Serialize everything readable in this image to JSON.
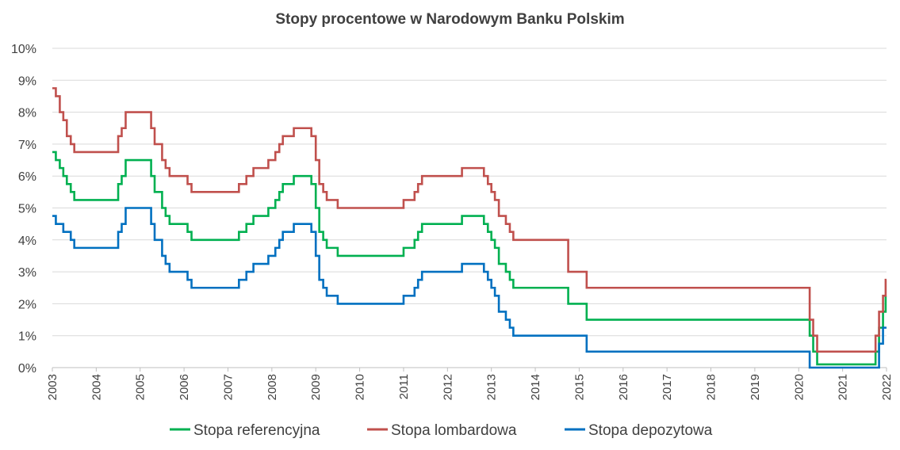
{
  "chart_data": {
    "type": "line",
    "title": "Stopy procentowe w Narodowym Banku Polskim",
    "xlabel": "",
    "ylabel": "",
    "x_range": [
      2003.0,
      2022.0
    ],
    "ylim": [
      0,
      10
    ],
    "y_ticks": [
      "0%",
      "1%",
      "2%",
      "3%",
      "4%",
      "5%",
      "6%",
      "7%",
      "8%",
      "9%",
      "10%"
    ],
    "x_ticks": [
      "2003",
      "2004",
      "2005",
      "2006",
      "2007",
      "2008",
      "2009",
      "2010",
      "2011",
      "2012",
      "2013",
      "2014",
      "2015",
      "2016",
      "2017",
      "2018",
      "2019",
      "2020",
      "2021",
      "2022"
    ],
    "grid": "horizontal",
    "legend_position": "bottom",
    "step": true,
    "series": [
      {
        "name": "Stopa referencyjna",
        "color": "#00B050",
        "points": [
          [
            2003.0,
            6.75
          ],
          [
            2003.08,
            6.5
          ],
          [
            2003.17,
            6.25
          ],
          [
            2003.25,
            6.0
          ],
          [
            2003.33,
            5.75
          ],
          [
            2003.42,
            5.5
          ],
          [
            2003.5,
            5.25
          ],
          [
            2004.5,
            5.75
          ],
          [
            2004.58,
            6.0
          ],
          [
            2004.67,
            6.5
          ],
          [
            2005.25,
            6.0
          ],
          [
            2005.33,
            5.5
          ],
          [
            2005.5,
            5.0
          ],
          [
            2005.58,
            4.75
          ],
          [
            2005.67,
            4.5
          ],
          [
            2006.08,
            4.25
          ],
          [
            2006.17,
            4.0
          ],
          [
            2007.25,
            4.25
          ],
          [
            2007.42,
            4.5
          ],
          [
            2007.58,
            4.75
          ],
          [
            2007.92,
            5.0
          ],
          [
            2008.08,
            5.25
          ],
          [
            2008.17,
            5.5
          ],
          [
            2008.25,
            5.75
          ],
          [
            2008.5,
            6.0
          ],
          [
            2008.9,
            5.75
          ],
          [
            2009.0,
            5.0
          ],
          [
            2009.08,
            4.25
          ],
          [
            2009.17,
            4.0
          ],
          [
            2009.25,
            3.75
          ],
          [
            2009.5,
            3.5
          ],
          [
            2011.0,
            3.75
          ],
          [
            2011.25,
            4.0
          ],
          [
            2011.33,
            4.25
          ],
          [
            2011.42,
            4.5
          ],
          [
            2012.33,
            4.75
          ],
          [
            2012.83,
            4.5
          ],
          [
            2012.92,
            4.25
          ],
          [
            2013.0,
            4.0
          ],
          [
            2013.08,
            3.75
          ],
          [
            2013.17,
            3.25
          ],
          [
            2013.33,
            3.0
          ],
          [
            2013.42,
            2.75
          ],
          [
            2013.5,
            2.5
          ],
          [
            2014.75,
            2.0
          ],
          [
            2015.17,
            1.5
          ],
          [
            2020.25,
            1.0
          ],
          [
            2020.33,
            0.5
          ],
          [
            2020.42,
            0.1
          ],
          [
            2021.75,
            0.5
          ],
          [
            2021.83,
            1.25
          ],
          [
            2021.92,
            1.75
          ],
          [
            2021.98,
            2.25
          ],
          [
            2022.0,
            2.25
          ]
        ]
      },
      {
        "name": "Stopa lombardowa",
        "color": "#C0504D",
        "points": [
          [
            2003.0,
            8.75
          ],
          [
            2003.08,
            8.5
          ],
          [
            2003.17,
            8.0
          ],
          [
            2003.25,
            7.75
          ],
          [
            2003.33,
            7.25
          ],
          [
            2003.42,
            7.0
          ],
          [
            2003.5,
            6.75
          ],
          [
            2004.5,
            7.25
          ],
          [
            2004.58,
            7.5
          ],
          [
            2004.67,
            8.0
          ],
          [
            2005.25,
            7.5
          ],
          [
            2005.33,
            7.0
          ],
          [
            2005.5,
            6.5
          ],
          [
            2005.58,
            6.25
          ],
          [
            2005.67,
            6.0
          ],
          [
            2006.08,
            5.75
          ],
          [
            2006.17,
            5.5
          ],
          [
            2007.25,
            5.75
          ],
          [
            2007.42,
            6.0
          ],
          [
            2007.58,
            6.25
          ],
          [
            2007.92,
            6.5
          ],
          [
            2008.08,
            6.75
          ],
          [
            2008.17,
            7.0
          ],
          [
            2008.25,
            7.25
          ],
          [
            2008.5,
            7.5
          ],
          [
            2008.9,
            7.25
          ],
          [
            2009.0,
            6.5
          ],
          [
            2009.08,
            5.75
          ],
          [
            2009.17,
            5.5
          ],
          [
            2009.25,
            5.25
          ],
          [
            2009.5,
            5.0
          ],
          [
            2011.0,
            5.25
          ],
          [
            2011.25,
            5.5
          ],
          [
            2011.33,
            5.75
          ],
          [
            2011.42,
            6.0
          ],
          [
            2012.33,
            6.25
          ],
          [
            2012.83,
            6.0
          ],
          [
            2012.92,
            5.75
          ],
          [
            2013.0,
            5.5
          ],
          [
            2013.08,
            5.25
          ],
          [
            2013.17,
            4.75
          ],
          [
            2013.33,
            4.5
          ],
          [
            2013.42,
            4.25
          ],
          [
            2013.5,
            4.0
          ],
          [
            2014.75,
            3.0
          ],
          [
            2015.17,
            2.5
          ],
          [
            2020.25,
            1.5
          ],
          [
            2020.33,
            1.0
          ],
          [
            2020.42,
            0.5
          ],
          [
            2021.75,
            1.0
          ],
          [
            2021.83,
            1.75
          ],
          [
            2021.92,
            2.25
          ],
          [
            2021.98,
            2.75
          ],
          [
            2022.0,
            2.75
          ]
        ]
      },
      {
        "name": "Stopa depozytowa",
        "color": "#0070C0",
        "points": [
          [
            2003.0,
            4.75
          ],
          [
            2003.08,
            4.5
          ],
          [
            2003.25,
            4.25
          ],
          [
            2003.42,
            4.0
          ],
          [
            2003.5,
            3.75
          ],
          [
            2004.5,
            4.25
          ],
          [
            2004.58,
            4.5
          ],
          [
            2004.67,
            5.0
          ],
          [
            2005.25,
            4.5
          ],
          [
            2005.33,
            4.0
          ],
          [
            2005.5,
            3.5
          ],
          [
            2005.58,
            3.25
          ],
          [
            2005.67,
            3.0
          ],
          [
            2006.08,
            2.75
          ],
          [
            2006.17,
            2.5
          ],
          [
            2007.25,
            2.75
          ],
          [
            2007.42,
            3.0
          ],
          [
            2007.58,
            3.25
          ],
          [
            2007.92,
            3.5
          ],
          [
            2008.08,
            3.75
          ],
          [
            2008.17,
            4.0
          ],
          [
            2008.25,
            4.25
          ],
          [
            2008.5,
            4.5
          ],
          [
            2008.9,
            4.25
          ],
          [
            2009.0,
            3.5
          ],
          [
            2009.08,
            2.75
          ],
          [
            2009.17,
            2.5
          ],
          [
            2009.25,
            2.25
          ],
          [
            2009.5,
            2.0
          ],
          [
            2011.0,
            2.25
          ],
          [
            2011.25,
            2.5
          ],
          [
            2011.33,
            2.75
          ],
          [
            2011.42,
            3.0
          ],
          [
            2012.33,
            3.25
          ],
          [
            2012.83,
            3.0
          ],
          [
            2012.92,
            2.75
          ],
          [
            2013.0,
            2.5
          ],
          [
            2013.08,
            2.25
          ],
          [
            2013.17,
            1.75
          ],
          [
            2013.33,
            1.5
          ],
          [
            2013.42,
            1.25
          ],
          [
            2013.5,
            1.0
          ],
          [
            2015.17,
            0.5
          ],
          [
            2020.25,
            0.0
          ],
          [
            2021.83,
            0.75
          ],
          [
            2021.92,
            1.25
          ],
          [
            2022.0,
            1.25
          ]
        ]
      }
    ]
  }
}
